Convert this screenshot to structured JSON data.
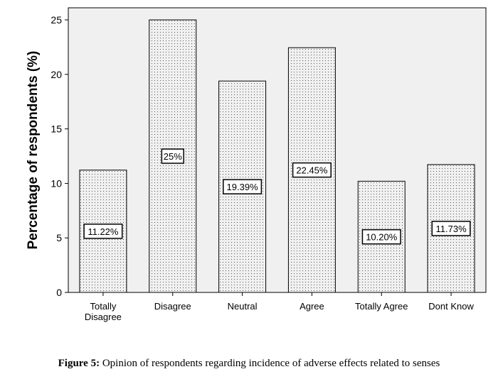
{
  "chart_data": {
    "type": "bar",
    "ylabel": "Percentage of respondents (%)",
    "xlabel": "",
    "ylim": [
      0,
      25
    ],
    "yticks": [
      0,
      5,
      10,
      15,
      20,
      25
    ],
    "grid": false,
    "categories": [
      "Totally Disagree",
      "Disagree",
      "Neutral",
      "Agree",
      "Totally Agree",
      "Dont Know"
    ],
    "category_lines": [
      [
        "Totally",
        "Disagree"
      ],
      [
        "Disagree"
      ],
      [
        "Neutral"
      ],
      [
        "Agree"
      ],
      [
        "Totally Agree"
      ],
      [
        "Dont Know"
      ]
    ],
    "values": [
      11.22,
      25,
      19.39,
      22.45,
      10.2,
      11.73
    ],
    "data_labels": [
      "11.22%",
      "25%",
      "19.39%",
      "22.45%",
      "10.20%",
      "11.73%"
    ],
    "colors": {
      "plot_bg": "#f0f0f0",
      "bar_fill": "#f0f0f0",
      "bar_dots": "#555555",
      "stroke": "#000000"
    }
  },
  "caption": {
    "lead": "Figure 5:",
    "text": " Opinion of respondents regarding incidence of adverse effects related to senses"
  }
}
